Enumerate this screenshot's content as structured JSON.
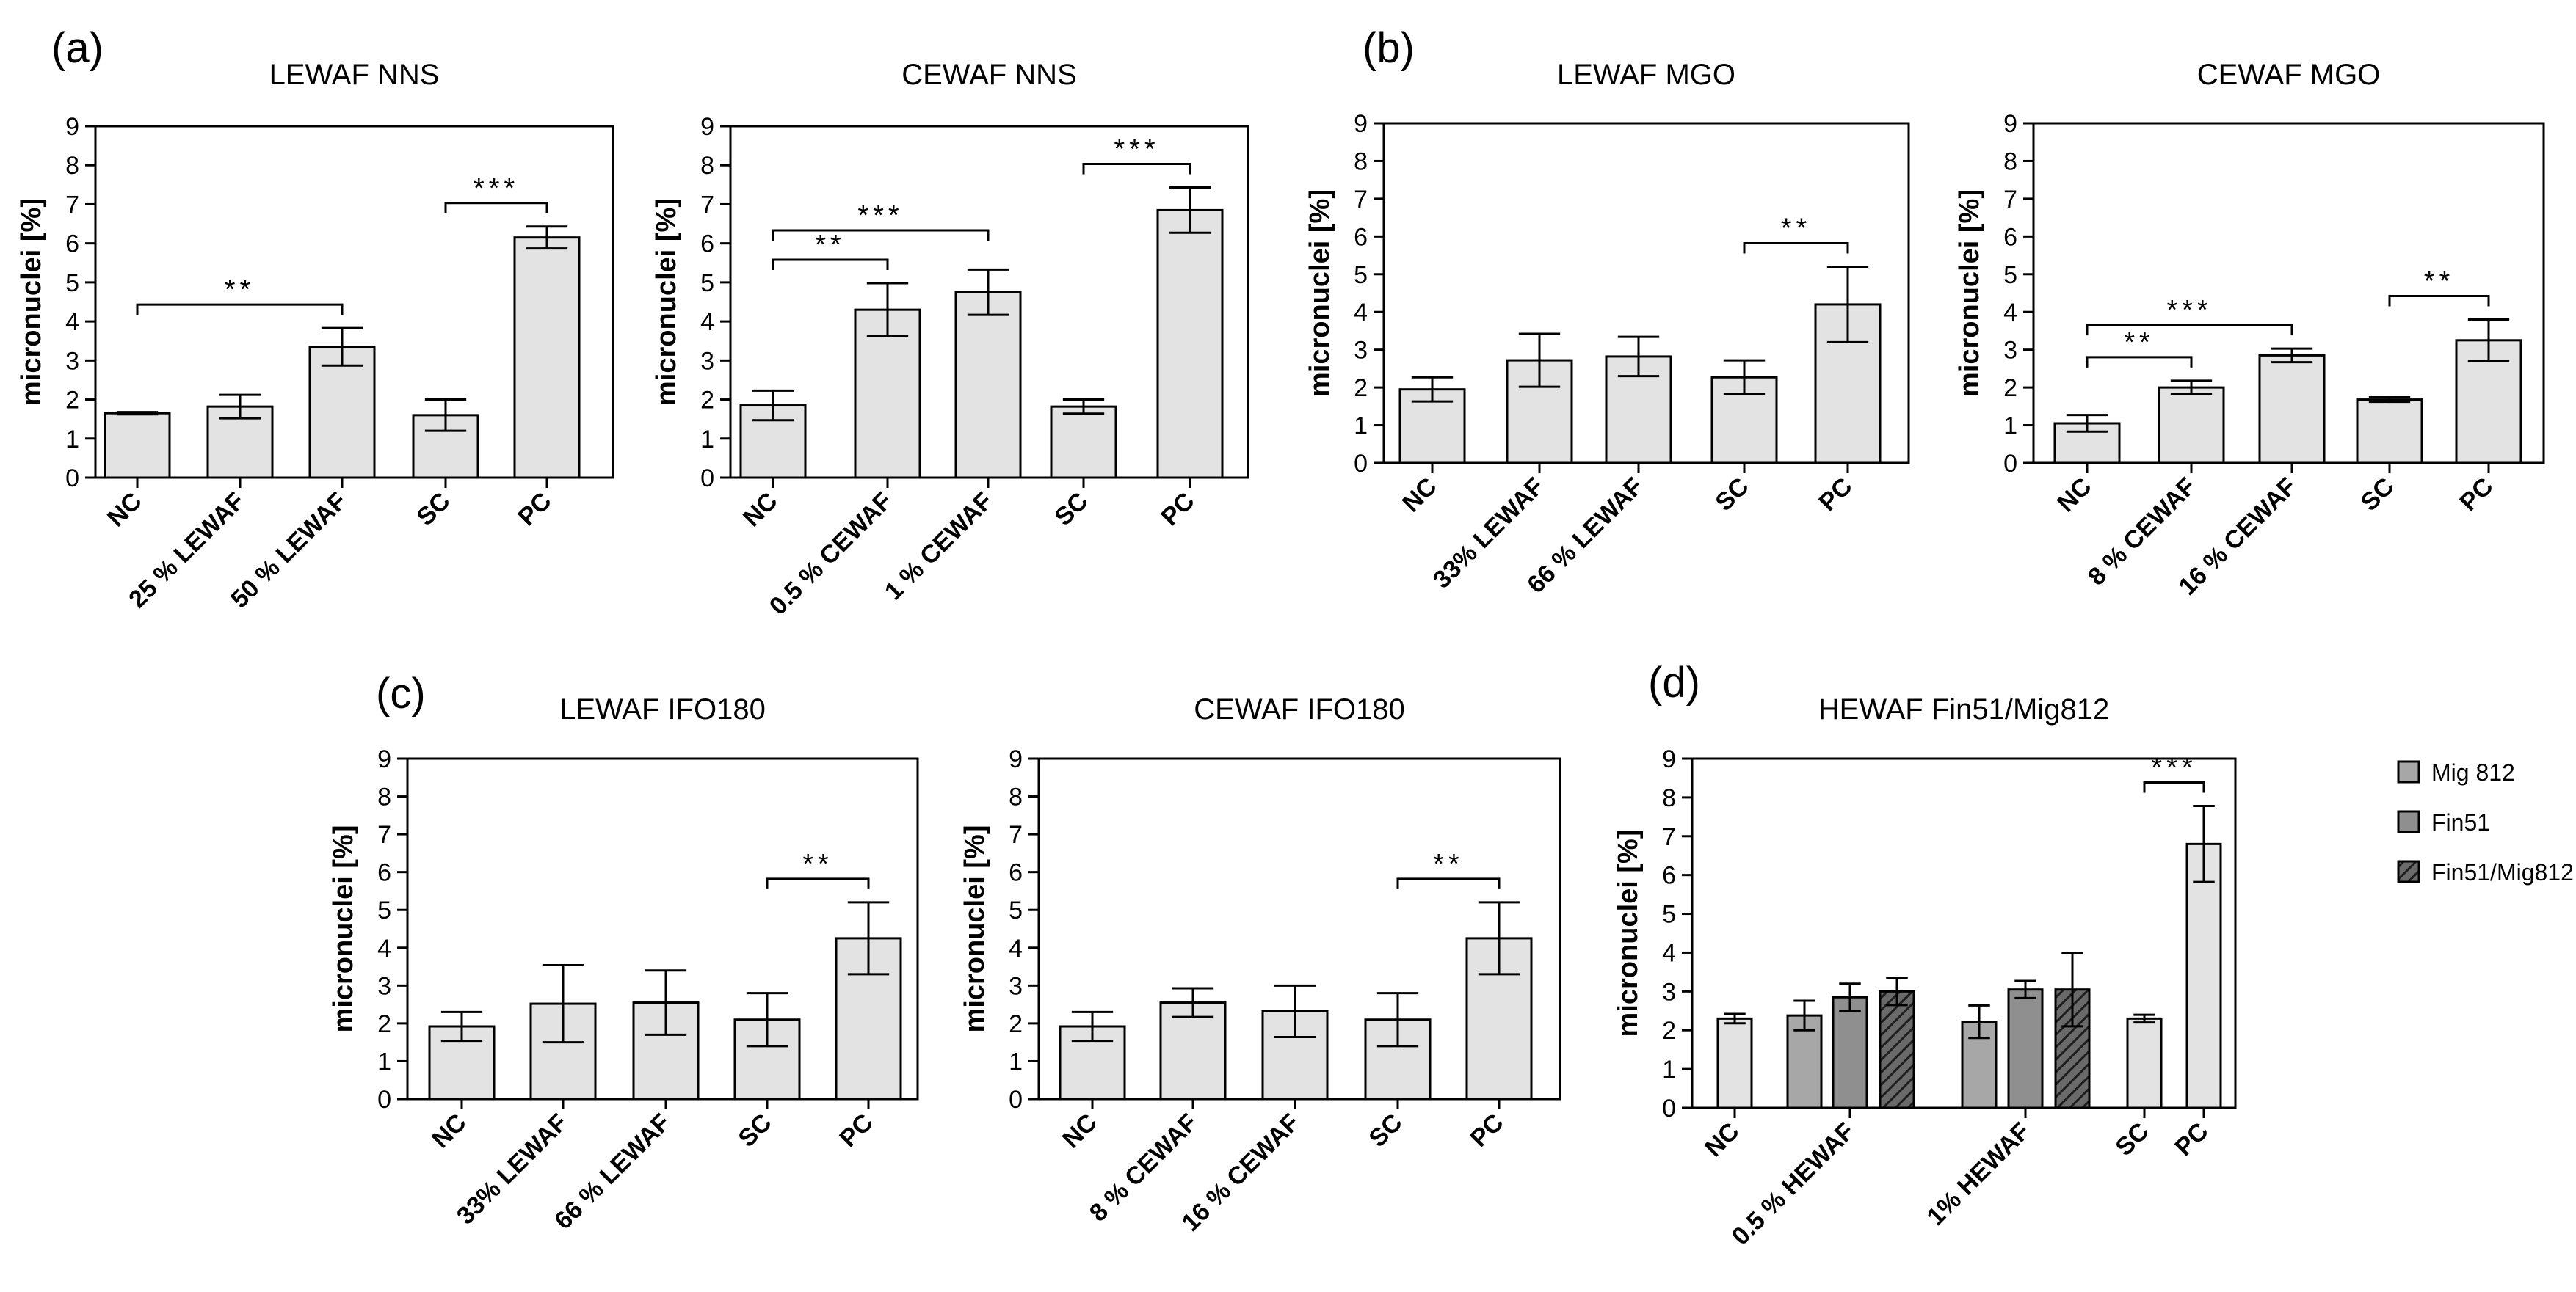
{
  "panel_labels": [
    "(a)",
    "(b)",
    "(c)",
    "(d)"
  ],
  "legend": {
    "items": [
      {
        "label": "Mig 812",
        "color": "#a7a7a7",
        "hatch": false
      },
      {
        "label": "Fin51",
        "color": "#8f8f8f",
        "hatch": false
      },
      {
        "label": "Fin51/Mig812",
        "color": "#6a6a6a",
        "hatch": true
      }
    ]
  },
  "colors": {
    "bar": "#e3e3e3",
    "mig812": "#a7a7a7",
    "fin51": "#8f8f8f",
    "fin51_mig812": "#6a6a6a"
  },
  "chart_data": [
    {
      "type": "bar",
      "title": "LEWAF NNS",
      "ylabel": "micronuclei [%]",
      "ylim": [
        0,
        9
      ],
      "yticks": [
        0,
        1,
        2,
        3,
        4,
        5,
        6,
        7,
        8,
        9
      ],
      "categories": [
        "NC",
        "25 % LEWAF",
        "50 % LEWAF",
        "SC",
        "PC"
      ],
      "values": [
        1.65,
        1.82,
        3.35,
        1.6,
        6.15
      ],
      "errors": [
        0.03,
        0.3,
        0.48,
        0.4,
        0.28
      ],
      "significance": [
        {
          "from": 0,
          "to": 2,
          "label": "**"
        },
        {
          "from": 3,
          "to": 4,
          "label": "***"
        }
      ]
    },
    {
      "type": "bar",
      "title": "CEWAF NNS",
      "ylabel": "micronuclei [%]",
      "ylim": [
        0,
        9
      ],
      "yticks": [
        0,
        1,
        2,
        3,
        4,
        5,
        6,
        7,
        8,
        9
      ],
      "categories": [
        "NC",
        "0.5 % CEWAF",
        "1 % CEWAF",
        "SC",
        "PC"
      ],
      "values": [
        1.85,
        4.3,
        4.75,
        1.82,
        6.85
      ],
      "errors": [
        0.38,
        0.68,
        0.58,
        0.18,
        0.58
      ],
      "significance": [
        {
          "from": 0,
          "to": 1,
          "label": "**"
        },
        {
          "from": 0,
          "to": 2,
          "label": "***"
        },
        {
          "from": 3,
          "to": 4,
          "label": "***"
        }
      ]
    },
    {
      "type": "bar",
      "title": "LEWAF MGO",
      "ylabel": "micronuclei [%]",
      "ylim": [
        0,
        9
      ],
      "yticks": [
        0,
        1,
        2,
        3,
        4,
        5,
        6,
        7,
        8,
        9
      ],
      "categories": [
        "NC",
        "33% LEWAF",
        "66 % LEWAF",
        "SC",
        "PC"
      ],
      "values": [
        1.95,
        2.72,
        2.82,
        2.27,
        4.2
      ],
      "errors": [
        0.32,
        0.7,
        0.52,
        0.45,
        1.0
      ],
      "significance": [
        {
          "from": 3,
          "to": 4,
          "label": "**"
        }
      ]
    },
    {
      "type": "bar",
      "title": "CEWAF MGO",
      "ylabel": "micronuclei [%]",
      "ylim": [
        0,
        9
      ],
      "yticks": [
        0,
        1,
        2,
        3,
        4,
        5,
        6,
        7,
        8,
        9
      ],
      "categories": [
        "NC",
        "8 % CEWAF",
        "16 % CEWAF",
        "SC",
        "PC"
      ],
      "values": [
        1.05,
        2.0,
        2.85,
        1.68,
        3.25
      ],
      "errors": [
        0.22,
        0.18,
        0.18,
        0.06,
        0.55
      ],
      "significance": [
        {
          "from": 0,
          "to": 1,
          "label": "**"
        },
        {
          "from": 0,
          "to": 2,
          "label": "***"
        },
        {
          "from": 3,
          "to": 4,
          "label": "**"
        }
      ]
    },
    {
      "type": "bar",
      "title": "LEWAF IFO180",
      "ylabel": "micronuclei [%]",
      "ylim": [
        0,
        9
      ],
      "yticks": [
        0,
        1,
        2,
        3,
        4,
        5,
        6,
        7,
        8,
        9
      ],
      "categories": [
        "NC",
        "33% LEWAF",
        "66 % LEWAF",
        "SC",
        "PC"
      ],
      "values": [
        1.92,
        2.52,
        2.55,
        2.1,
        4.25
      ],
      "errors": [
        0.38,
        1.02,
        0.85,
        0.7,
        0.95
      ],
      "significance": [
        {
          "from": 3,
          "to": 4,
          "label": "**"
        }
      ]
    },
    {
      "type": "bar",
      "title": "CEWAF IFO180",
      "ylabel": "micronuclei [%]",
      "ylim": [
        0,
        9
      ],
      "yticks": [
        0,
        1,
        2,
        3,
        4,
        5,
        6,
        7,
        8,
        9
      ],
      "categories": [
        "NC",
        "8 % CEWAF",
        "16 % CEWAF",
        "SC",
        "PC"
      ],
      "values": [
        1.92,
        2.55,
        2.32,
        2.1,
        4.25
      ],
      "errors": [
        0.38,
        0.38,
        0.68,
        0.7,
        0.95
      ],
      "significance": [
        {
          "from": 3,
          "to": 4,
          "label": "**"
        }
      ]
    },
    {
      "type": "bar",
      "title": "HEWAF Fin51/Mig812",
      "ylabel": "micronuclei [%]",
      "ylim": [
        0,
        9
      ],
      "yticks": [
        0,
        1,
        2,
        3,
        4,
        5,
        6,
        7,
        8,
        9
      ],
      "categories": [
        "NC",
        "0.5 % HEWAF",
        "1% HEWAF",
        "SC",
        "PC"
      ],
      "series": [
        {
          "name": "Mig 812",
          "values": [
            null,
            2.38,
            2.22,
            null,
            null
          ],
          "errors": [
            null,
            0.38,
            0.42,
            null,
            null
          ]
        },
        {
          "name": "Fin51",
          "values": [
            null,
            2.85,
            3.05,
            null,
            null
          ],
          "errors": [
            null,
            0.35,
            0.22,
            null,
            null
          ]
        },
        {
          "name": "Fin51/Mig812",
          "values": [
            null,
            3.0,
            3.05,
            null,
            null
          ],
          "errors": [
            null,
            0.35,
            0.95,
            null,
            null
          ]
        },
        {
          "name": "",
          "values": [
            2.3,
            null,
            null,
            2.3,
            6.8
          ],
          "errors": [
            0.12,
            null,
            null,
            0.1,
            0.98
          ]
        }
      ],
      "significance": [
        {
          "from": 3,
          "to": 4,
          "label": "***"
        }
      ]
    }
  ]
}
